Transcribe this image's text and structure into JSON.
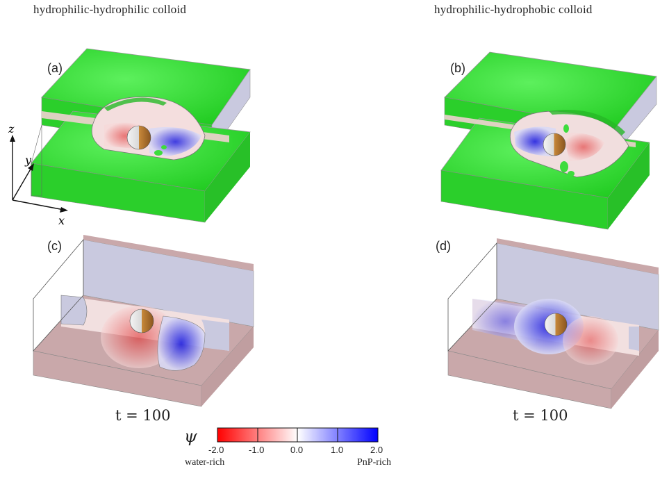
{
  "titles": {
    "left": "hydrophilic-hydrophilic colloid",
    "right": "hydrophilic-hydrophobic colloid"
  },
  "panels": {
    "a": "(a)",
    "b": "(b)",
    "c": "(c)",
    "d": "(d)"
  },
  "axes": {
    "x": "x",
    "y": "y",
    "z": "z"
  },
  "time_labels": {
    "c": "t = 100",
    "d": "t = 100"
  },
  "colorbar": {
    "symbol": "ψ",
    "ticks": [
      "-2.0",
      "-1.0",
      "0.0",
      "1.0",
      "2.0"
    ],
    "left_end": "water-rich",
    "right_end": "PnP-rich",
    "colors": {
      "low": "#ff0000",
      "mid": "#ffffff",
      "high": "#0000ff"
    }
  },
  "colors": {
    "interface": "#33dd33",
    "water_rich": "#e03030",
    "pnp_rich": "#2a2ae0",
    "slab": "#c8a5a8",
    "slab_top": "#c8c8e0",
    "particle_gold": "#c8893a"
  }
}
